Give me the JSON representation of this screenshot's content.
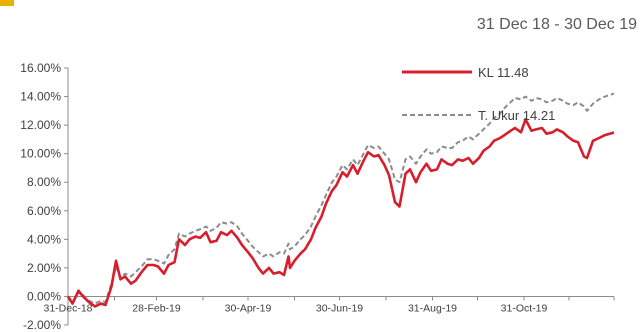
{
  "header": {
    "date_range": "31 Dec 18 - 30 Dec 19"
  },
  "colors": {
    "kl": "#d81e2c",
    "benchmark": "#8c8c8c",
    "accent": "#e8b100",
    "axis": "#8c8c8c"
  },
  "chart_data": {
    "type": "line",
    "title": "",
    "xlabel": "",
    "ylabel": "",
    "ylim": [
      -2,
      16
    ],
    "y_ticks": [
      -2,
      0,
      2,
      4,
      6,
      8,
      10,
      12,
      14,
      16
    ],
    "y_tick_labels": [
      "-2.00%",
      "0.00%",
      "2.00%",
      "4.00%",
      "6.00%",
      "8.00%",
      "10.00%",
      "12.00%",
      "14.00%",
      "16.00%"
    ],
    "x_ticks": [
      "2018-12-31",
      "2019-02-28",
      "2019-04-30",
      "2019-06-30",
      "2019-08-31",
      "2019-10-31"
    ],
    "x_tick_labels": [
      "31-Dec-18",
      "28-Feb-19",
      "30-Apr-19",
      "30-Jun-19",
      "31-Aug-19",
      "31-Oct-19"
    ],
    "x_range": [
      "2018-12-31",
      "2019-12-30"
    ],
    "legend_position": "top-right",
    "grid": false,
    "series": [
      {
        "name": "KL 11.48",
        "points": [
          [
            "2018-12-31",
            0
          ],
          [
            "2019-01-03",
            -0.5
          ],
          [
            "2019-01-07",
            0.4
          ],
          [
            "2019-01-10",
            0.0
          ],
          [
            "2019-01-14",
            -0.4
          ],
          [
            "2019-01-18",
            -0.7
          ],
          [
            "2019-01-22",
            -0.5
          ],
          [
            "2019-01-25",
            -0.6
          ],
          [
            "2019-01-29",
            0.7
          ],
          [
            "2019-02-01",
            2.5
          ],
          [
            "2019-02-04",
            1.2
          ],
          [
            "2019-02-07",
            1.4
          ],
          [
            "2019-02-11",
            0.9
          ],
          [
            "2019-02-14",
            1.1
          ],
          [
            "2019-02-18",
            1.7
          ],
          [
            "2019-02-22",
            2.2
          ],
          [
            "2019-02-26",
            2.2
          ],
          [
            "2019-03-01",
            2.1
          ],
          [
            "2019-03-05",
            1.6
          ],
          [
            "2019-03-08",
            2.2
          ],
          [
            "2019-03-12",
            2.4
          ],
          [
            "2019-03-15",
            4.0
          ],
          [
            "2019-03-19",
            3.6
          ],
          [
            "2019-03-22",
            4.0
          ],
          [
            "2019-03-26",
            4.2
          ],
          [
            "2019-03-29",
            4.1
          ],
          [
            "2019-04-02",
            4.5
          ],
          [
            "2019-04-05",
            3.8
          ],
          [
            "2019-04-09",
            3.9
          ],
          [
            "2019-04-12",
            4.5
          ],
          [
            "2019-04-16",
            4.3
          ],
          [
            "2019-04-19",
            4.6
          ],
          [
            "2019-04-23",
            4.1
          ],
          [
            "2019-04-26",
            3.6
          ],
          [
            "2019-04-30",
            3.1
          ],
          [
            "2019-05-03",
            2.7
          ],
          [
            "2019-05-07",
            2.0
          ],
          [
            "2019-05-10",
            1.6
          ],
          [
            "2019-05-14",
            2.0
          ],
          [
            "2019-05-17",
            1.6
          ],
          [
            "2019-05-21",
            1.7
          ],
          [
            "2019-05-24",
            1.5
          ],
          [
            "2019-05-27",
            2.8
          ],
          [
            "2019-05-28",
            2.0
          ],
          [
            "2019-05-31",
            2.5
          ],
          [
            "2019-06-04",
            3.0
          ],
          [
            "2019-06-07",
            3.3
          ],
          [
            "2019-06-11",
            4.0
          ],
          [
            "2019-06-14",
            4.8
          ],
          [
            "2019-06-18",
            5.6
          ],
          [
            "2019-06-21",
            6.5
          ],
          [
            "2019-06-25",
            7.4
          ],
          [
            "2019-06-28",
            7.8
          ],
          [
            "2019-07-02",
            8.7
          ],
          [
            "2019-07-05",
            8.4
          ],
          [
            "2019-07-09",
            9.2
          ],
          [
            "2019-07-12",
            8.6
          ],
          [
            "2019-07-16",
            9.5
          ],
          [
            "2019-07-19",
            10.1
          ],
          [
            "2019-07-23",
            9.8
          ],
          [
            "2019-07-26",
            9.9
          ],
          [
            "2019-07-30",
            9.2
          ],
          [
            "2019-08-02",
            8.5
          ],
          [
            "2019-08-06",
            6.6
          ],
          [
            "2019-08-09",
            6.3
          ],
          [
            "2019-08-13",
            8.6
          ],
          [
            "2019-08-16",
            8.9
          ],
          [
            "2019-08-20",
            8.0
          ],
          [
            "2019-08-23",
            8.7
          ],
          [
            "2019-08-27",
            9.3
          ],
          [
            "2019-08-30",
            8.8
          ],
          [
            "2019-09-03",
            8.9
          ],
          [
            "2019-09-06",
            9.6
          ],
          [
            "2019-09-10",
            9.3
          ],
          [
            "2019-09-13",
            9.2
          ],
          [
            "2019-09-17",
            9.6
          ],
          [
            "2019-09-20",
            9.5
          ],
          [
            "2019-09-24",
            9.7
          ],
          [
            "2019-09-27",
            9.3
          ],
          [
            "2019-10-01",
            9.7
          ],
          [
            "2019-10-04",
            10.2
          ],
          [
            "2019-10-08",
            10.5
          ],
          [
            "2019-10-11",
            10.9
          ],
          [
            "2019-10-15",
            11.1
          ],
          [
            "2019-10-18",
            11.3
          ],
          [
            "2019-10-22",
            11.6
          ],
          [
            "2019-10-25",
            11.8
          ],
          [
            "2019-10-29",
            11.5
          ],
          [
            "2019-11-01",
            12.4
          ],
          [
            "2019-11-05",
            11.6
          ],
          [
            "2019-11-08",
            11.7
          ],
          [
            "2019-11-12",
            11.8
          ],
          [
            "2019-11-15",
            11.4
          ],
          [
            "2019-11-19",
            11.5
          ],
          [
            "2019-11-22",
            11.7
          ],
          [
            "2019-11-26",
            11.5
          ],
          [
            "2019-11-29",
            11.2
          ],
          [
            "2019-12-03",
            10.9
          ],
          [
            "2019-12-06",
            10.8
          ],
          [
            "2019-12-10",
            9.8
          ],
          [
            "2019-12-12",
            9.7
          ],
          [
            "2019-12-16",
            10.9
          ],
          [
            "2019-12-20",
            11.1
          ],
          [
            "2019-12-24",
            11.3
          ],
          [
            "2019-12-30",
            11.48
          ]
        ]
      },
      {
        "name": "T. Ukur 14.21",
        "points": [
          [
            "2018-12-31",
            0
          ],
          [
            "2019-01-03",
            -0.4
          ],
          [
            "2019-01-07",
            0.3
          ],
          [
            "2019-01-10",
            0.1
          ],
          [
            "2019-01-14",
            -0.3
          ],
          [
            "2019-01-18",
            -0.5
          ],
          [
            "2019-01-22",
            -0.3
          ],
          [
            "2019-01-25",
            -0.4
          ],
          [
            "2019-01-29",
            0.9
          ],
          [
            "2019-02-01",
            2.1
          ],
          [
            "2019-02-04",
            1.3
          ],
          [
            "2019-02-07",
            1.6
          ],
          [
            "2019-02-11",
            1.4
          ],
          [
            "2019-02-14",
            1.7
          ],
          [
            "2019-02-18",
            2.1
          ],
          [
            "2019-02-22",
            2.6
          ],
          [
            "2019-02-26",
            2.6
          ],
          [
            "2019-03-01",
            2.5
          ],
          [
            "2019-03-05",
            2.3
          ],
          [
            "2019-03-08",
            2.9
          ],
          [
            "2019-03-12",
            3.3
          ],
          [
            "2019-03-15",
            4.4
          ],
          [
            "2019-03-19",
            4.2
          ],
          [
            "2019-03-22",
            4.4
          ],
          [
            "2019-03-26",
            4.6
          ],
          [
            "2019-03-29",
            4.7
          ],
          [
            "2019-04-02",
            4.9
          ],
          [
            "2019-04-05",
            4.6
          ],
          [
            "2019-04-09",
            4.8
          ],
          [
            "2019-04-12",
            5.2
          ],
          [
            "2019-04-16",
            5.1
          ],
          [
            "2019-04-19",
            5.2
          ],
          [
            "2019-04-23",
            4.9
          ],
          [
            "2019-04-26",
            4.4
          ],
          [
            "2019-04-30",
            3.9
          ],
          [
            "2019-05-03",
            3.5
          ],
          [
            "2019-05-07",
            3.1
          ],
          [
            "2019-05-10",
            2.8
          ],
          [
            "2019-05-14",
            3.0
          ],
          [
            "2019-05-17",
            2.8
          ],
          [
            "2019-05-21",
            3.1
          ],
          [
            "2019-05-24",
            3.0
          ],
          [
            "2019-05-27",
            3.7
          ],
          [
            "2019-05-28",
            3.3
          ],
          [
            "2019-05-31",
            3.5
          ],
          [
            "2019-06-04",
            4.0
          ],
          [
            "2019-06-07",
            4.3
          ],
          [
            "2019-06-11",
            4.9
          ],
          [
            "2019-06-14",
            5.6
          ],
          [
            "2019-06-18",
            6.4
          ],
          [
            "2019-06-21",
            7.1
          ],
          [
            "2019-06-25",
            8.0
          ],
          [
            "2019-06-28",
            8.4
          ],
          [
            "2019-07-02",
            9.2
          ],
          [
            "2019-07-05",
            8.9
          ],
          [
            "2019-07-09",
            9.6
          ],
          [
            "2019-07-12",
            9.2
          ],
          [
            "2019-07-16",
            10.0
          ],
          [
            "2019-07-19",
            10.6
          ],
          [
            "2019-07-23",
            10.4
          ],
          [
            "2019-07-26",
            10.5
          ],
          [
            "2019-07-30",
            10.0
          ],
          [
            "2019-08-02",
            9.6
          ],
          [
            "2019-08-06",
            8.2
          ],
          [
            "2019-08-09",
            8.0
          ],
          [
            "2019-08-13",
            9.6
          ],
          [
            "2019-08-16",
            9.8
          ],
          [
            "2019-08-20",
            9.3
          ],
          [
            "2019-08-23",
            9.8
          ],
          [
            "2019-08-27",
            10.3
          ],
          [
            "2019-08-30",
            10.0
          ],
          [
            "2019-09-03",
            10.1
          ],
          [
            "2019-09-06",
            10.5
          ],
          [
            "2019-09-10",
            10.4
          ],
          [
            "2019-09-13",
            10.4
          ],
          [
            "2019-09-17",
            10.8
          ],
          [
            "2019-09-20",
            10.9
          ],
          [
            "2019-09-24",
            11.2
          ],
          [
            "2019-09-27",
            11.0
          ],
          [
            "2019-10-01",
            11.4
          ],
          [
            "2019-10-04",
            11.7
          ],
          [
            "2019-10-08",
            12.1
          ],
          [
            "2019-10-11",
            12.5
          ],
          [
            "2019-10-15",
            12.8
          ],
          [
            "2019-10-18",
            13.2
          ],
          [
            "2019-10-22",
            13.6
          ],
          [
            "2019-10-25",
            13.9
          ],
          [
            "2019-10-29",
            13.8
          ],
          [
            "2019-11-01",
            14.0
          ],
          [
            "2019-11-05",
            13.7
          ],
          [
            "2019-11-08",
            13.9
          ],
          [
            "2019-11-12",
            13.8
          ],
          [
            "2019-11-15",
            13.6
          ],
          [
            "2019-11-19",
            13.7
          ],
          [
            "2019-11-22",
            13.9
          ],
          [
            "2019-11-26",
            13.7
          ],
          [
            "2019-11-29",
            13.5
          ],
          [
            "2019-12-03",
            13.4
          ],
          [
            "2019-12-06",
            13.6
          ],
          [
            "2019-12-10",
            13.3
          ],
          [
            "2019-12-12",
            13.0
          ],
          [
            "2019-12-16",
            13.5
          ],
          [
            "2019-12-20",
            13.8
          ],
          [
            "2019-12-24",
            14.0
          ],
          [
            "2019-12-30",
            14.21
          ]
        ]
      }
    ]
  }
}
